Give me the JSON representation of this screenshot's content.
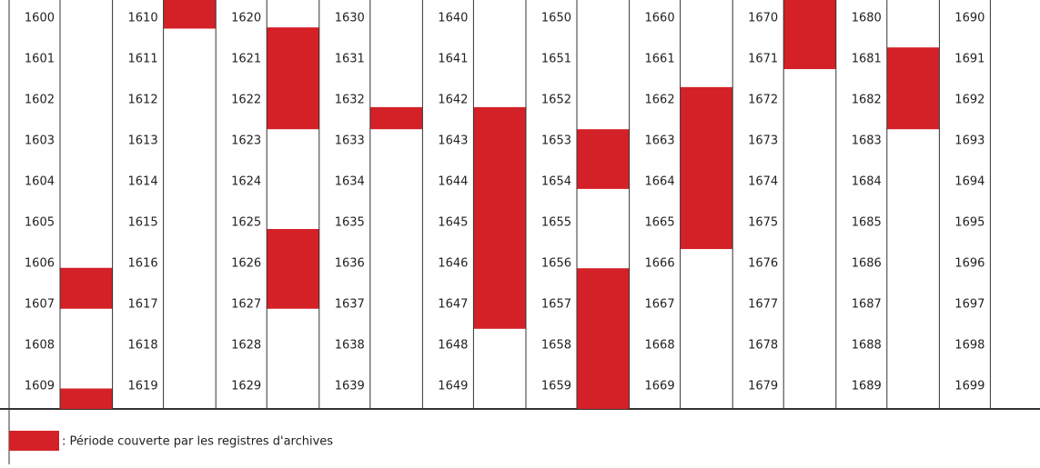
{
  "decades": [
    {
      "years": [
        "1600",
        "1601",
        "1602",
        "1603",
        "1604",
        "1605",
        "1606",
        "1607",
        "1608",
        "1609"
      ],
      "periods": [
        [
          1606.55,
          1607.55
        ],
        [
          1609.5,
          1610
        ]
      ]
    },
    {
      "years": [
        "1610",
        "1611",
        "1612",
        "1613",
        "1614",
        "1615",
        "1616",
        "1617",
        "1618",
        "1619"
      ],
      "periods": [
        [
          1610,
          1610.7
        ]
      ]
    },
    {
      "years": [
        "1620",
        "1621",
        "1622",
        "1623",
        "1624",
        "1625",
        "1626",
        "1627",
        "1628",
        "1629"
      ],
      "periods": [
        [
          1620.67,
          1623.16
        ],
        [
          1625.6,
          1627.55
        ]
      ]
    },
    {
      "years": [
        "1630",
        "1631",
        "1632",
        "1633",
        "1634",
        "1635",
        "1636",
        "1637",
        "1638",
        "1639"
      ],
      "periods": [
        [
          1632.62,
          1633.16
        ]
      ]
    },
    {
      "years": [
        "1640",
        "1641",
        "1642",
        "1643",
        "1644",
        "1645",
        "1646",
        "1647",
        "1648",
        "1649"
      ],
      "periods": [
        [
          1642.62,
          1648.04
        ]
      ]
    },
    {
      "years": [
        "1650",
        "1651",
        "1652",
        "1653",
        "1654",
        "1655",
        "1656",
        "1657",
        "1658",
        "1659"
      ],
      "periods": [
        [
          1653.16,
          1654.62
        ],
        [
          1656.56,
          1660
        ]
      ]
    },
    {
      "years": [
        "1660",
        "1661",
        "1662",
        "1663",
        "1664",
        "1665",
        "1666",
        "1667",
        "1668",
        "1669"
      ],
      "periods": [
        [
          1662.13,
          1666.09
        ]
      ]
    },
    {
      "years": [
        "1670",
        "1671",
        "1672",
        "1673",
        "1674",
        "1675",
        "1676",
        "1677",
        "1678",
        "1679"
      ],
      "periods": [
        [
          1670,
          1671.69
        ]
      ]
    },
    {
      "years": [
        "1680",
        "1681",
        "1682",
        "1683",
        "1684",
        "1685",
        "1686",
        "1687",
        "1688",
        "1689"
      ],
      "periods": [
        [
          1681.16,
          1683.16
        ]
      ]
    },
    {
      "years": [
        "1690",
        "1691",
        "1692",
        "1693",
        "1694",
        "1695",
        "1696",
        "1697",
        "1698",
        "1699"
      ],
      "periods": []
    }
  ],
  "legend": {
    "label": ": Période couverte par les registres d'archives"
  }
}
